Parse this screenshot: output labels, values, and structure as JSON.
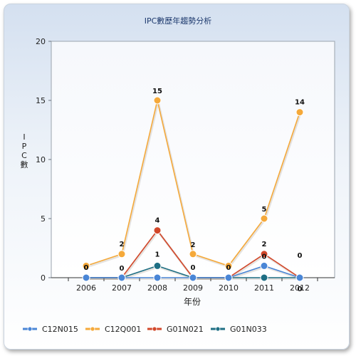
{
  "chart_data": {
    "type": "line",
    "title": "IPC數歷年趨勢分析",
    "xlabel": "年份",
    "ylabel": "IPC數",
    "categories": [
      "2006",
      "2007",
      "2008",
      "2009",
      "2010",
      "2011",
      "2012"
    ],
    "ylim": [
      0,
      20
    ],
    "yticks": [
      0,
      5,
      10,
      15,
      20
    ],
    "grid": false,
    "legend_position": "bottom",
    "series": [
      {
        "name": "C12N015",
        "color": "#4a86d6",
        "values": [
          0,
          0,
          0,
          0,
          0,
          1,
          0
        ]
      },
      {
        "name": "C12Q001",
        "color": "#f5a93a",
        "values": [
          1,
          2,
          15,
          2,
          1,
          5,
          14
        ]
      },
      {
        "name": "G01N021",
        "color": "#d2472a",
        "values": [
          0,
          0,
          4,
          0,
          0,
          2,
          0
        ]
      },
      {
        "name": "G01N033",
        "color": "#1f6f84",
        "values": [
          0,
          0,
          1,
          0,
          0,
          0,
          0
        ]
      }
    ],
    "data_labels": [
      {
        "category": "2006",
        "text": "0"
      },
      {
        "category": "2006",
        "text": "0"
      },
      {
        "category": "2007",
        "text": "2"
      },
      {
        "category": "2007",
        "text": "0"
      },
      {
        "category": "2008",
        "text": "15"
      },
      {
        "category": "2008",
        "text": "4"
      },
      {
        "category": "2008",
        "text": "1"
      },
      {
        "category": "2009",
        "text": "2"
      },
      {
        "category": "2009",
        "text": "0"
      },
      {
        "category": "2010",
        "text": "0"
      },
      {
        "category": "2011",
        "text": "5"
      },
      {
        "category": "2011",
        "text": "2"
      },
      {
        "category": "2011",
        "text": "0"
      },
      {
        "category": "2012",
        "text": "14"
      },
      {
        "category": "2012",
        "text": "0"
      },
      {
        "category": "2012",
        "text": "0"
      }
    ]
  }
}
